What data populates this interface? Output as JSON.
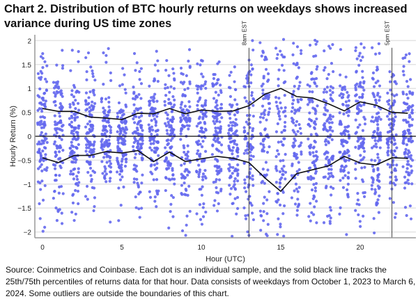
{
  "chart_data": {
    "type": "scatter",
    "title": "Chart 2. Distribution of BTC hourly returns on weekdays shows increased variance during US time zones",
    "xlabel": "Hour (UTC)",
    "ylabel": "Hourly Return (%)",
    "xlim": [
      -0.5,
      23.5
    ],
    "ylim": [
      -2.1,
      2.1
    ],
    "xticks": [
      "0",
      "5",
      "10",
      "15",
      "20"
    ],
    "xtick_values": [
      0,
      5,
      10,
      15,
      20
    ],
    "yticks": [
      "2",
      "1.5",
      "1",
      "0.5",
      "0",
      "-0.5",
      "-1",
      "-1.5",
      "-2"
    ],
    "ytick_values": [
      2,
      1.5,
      1,
      0.5,
      0,
      -0.5,
      -1,
      -1.5,
      -2
    ],
    "grid": "horizontal",
    "dot_color": "#6468ee",
    "samples_per_hour": 110,
    "hours": [
      0,
      1,
      2,
      3,
      4,
      5,
      6,
      7,
      8,
      9,
      10,
      11,
      12,
      13,
      14,
      15,
      16,
      17,
      18,
      19,
      20,
      21,
      22,
      23
    ],
    "p75": [
      0.58,
      0.52,
      0.52,
      0.4,
      0.38,
      0.35,
      0.48,
      0.47,
      0.58,
      0.47,
      0.55,
      0.52,
      0.53,
      0.64,
      0.88,
      1.0,
      0.83,
      0.8,
      0.68,
      0.53,
      0.72,
      0.65,
      0.5,
      0.48
    ],
    "p25": [
      -0.45,
      -0.55,
      -0.4,
      -0.4,
      -0.32,
      -0.35,
      -0.3,
      -0.53,
      -0.33,
      -0.53,
      -0.47,
      -0.42,
      -0.46,
      -0.55,
      -0.87,
      -1.15,
      -0.78,
      -0.7,
      -0.62,
      -0.42,
      -0.56,
      -0.6,
      -0.45,
      -0.46
    ],
    "annotations": [
      {
        "x": 13,
        "label": "8am EST"
      },
      {
        "x": 22,
        "label": "5pm EST"
      }
    ]
  },
  "footnote": "Source: Coinmetrics and Coinbase. Each dot is an individual sample, and the solid black line tracks the 25th/75th percentiles of returns data for that hour. Data consists of weekdays from October 1, 2023 to March 6, 2024. Some outliers are outside the boundaries of this chart."
}
